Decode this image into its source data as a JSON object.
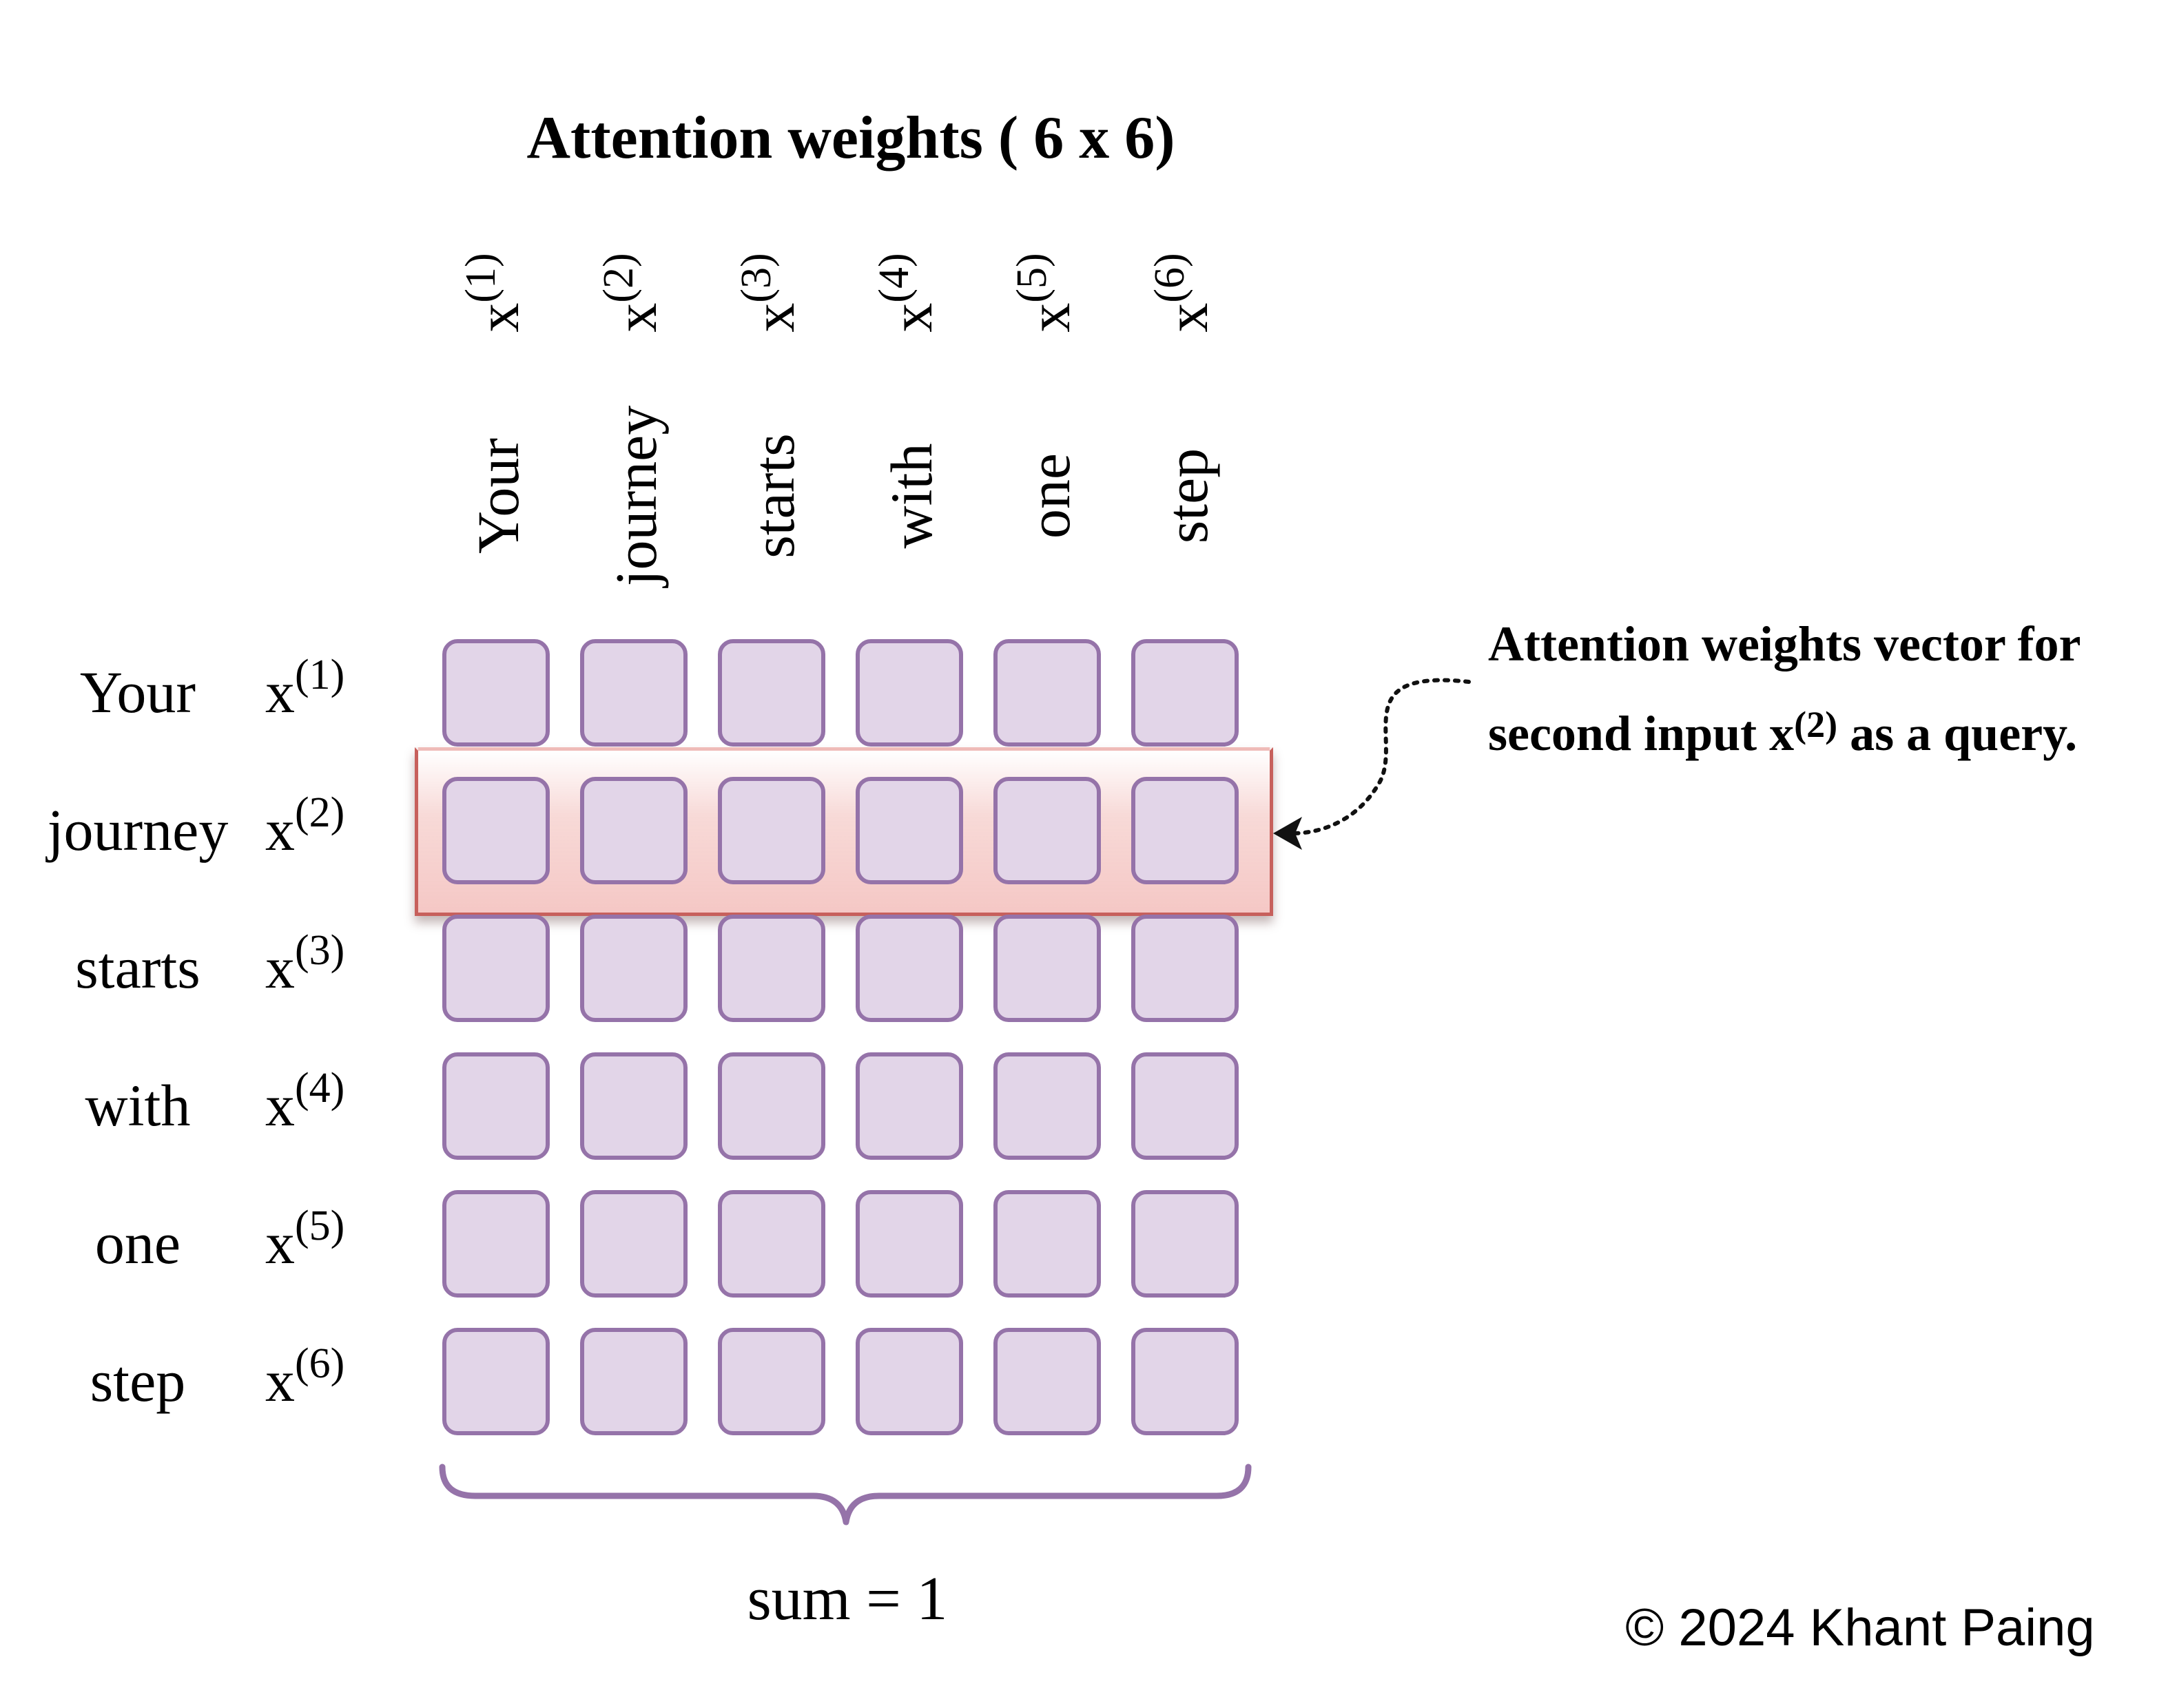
{
  "title": "Attention weights ( 6 x 6)",
  "tokens": [
    "Your",
    "journey",
    "starts",
    "with",
    "one",
    "step"
  ],
  "input_base": "x",
  "input_indices": [
    "(1)",
    "(2)",
    "(3)",
    "(4)",
    "(5)",
    "(6)"
  ],
  "highlighted_row": 2,
  "annotation": {
    "line1": "Attention weights vector for",
    "line2_before": "second input x",
    "line2_sup": "(2)",
    "line2_after": " as a query."
  },
  "sum_label": "sum = 1",
  "credit": "© 2024 Khant Paing",
  "colors": {
    "cell_fill": "#e2d5e8",
    "cell_border": "#9573a9",
    "highlight_border": "#c7605c",
    "brace": "#9573a9"
  }
}
